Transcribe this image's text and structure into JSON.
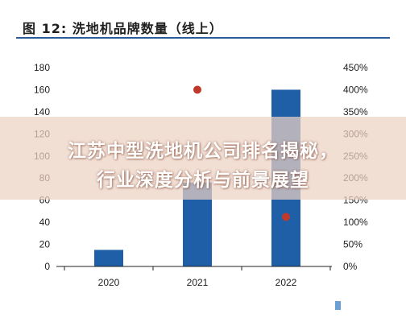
{
  "figure": {
    "title": "图 12: 洗地机品牌数量（线上）"
  },
  "overlay": {
    "line1": "江苏中型洗地机公司排名揭秘，",
    "line2": "行业深度分析与前景展望"
  },
  "colors": {
    "bar": "#1f5fa8",
    "point": "#c0392b",
    "axis": "#222222",
    "rule": "#2b5c9a"
  },
  "chart_data": {
    "type": "bar",
    "categories": [
      "2020",
      "2021",
      "2022"
    ],
    "series": [
      {
        "kind": "bar",
        "axis": "left",
        "values": [
          15,
          76,
          160
        ]
      },
      {
        "kind": "scatter",
        "axis": "right",
        "values": [
          null,
          400,
          112
        ]
      }
    ],
    "ylim": [
      0,
      180
    ],
    "y_ticks": [
      0,
      20,
      40,
      60,
      80,
      100,
      120,
      140,
      160,
      180
    ],
    "y2lim": [
      0,
      450
    ],
    "y2_ticks": [
      "0%",
      "50%",
      "100%",
      "150%",
      "200%",
      "250%",
      "300%",
      "350%",
      "400%",
      "450%"
    ],
    "grid": false,
    "legend": "none"
  }
}
